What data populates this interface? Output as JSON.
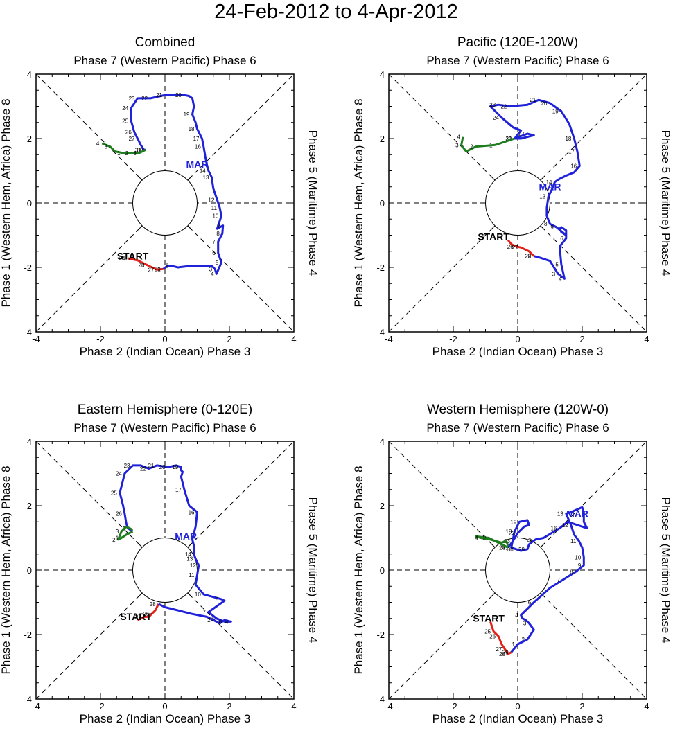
{
  "figure_title": "24-Feb-2012 to 4-Apr-2012",
  "axis_labels": {
    "top": "Phase 7 (Western Pacific) Phase 6",
    "bottom": "Phase 2 (Indian Ocean) Phase 3",
    "left": "Phase 1 (Western Hem, Africa) Phase 8",
    "right": "Phase 5 (Maritime) Phase 4"
  },
  "labels": {
    "start": "START",
    "month": "MAR"
  },
  "colors": {
    "feb": "#e32119",
    "mar": "#1f22d8",
    "apr": "#1e7d1e"
  },
  "chart_data": [
    {
      "type": "line",
      "title": "Combined",
      "xlim": [
        -4,
        4
      ],
      "ylim": [
        -4,
        4
      ],
      "xticks": [
        "-4",
        "-2",
        "0",
        "2",
        "4"
      ],
      "yticks": [
        "-4",
        "-2",
        "0",
        "2",
        "4"
      ],
      "start_label_at": [
        -1.0,
        -1.75
      ],
      "month_label_at": [
        1.0,
        1.1
      ],
      "series": [
        {
          "name": "Feb",
          "color": "feb",
          "x": [
            -1.15,
            -0.85,
            -0.55,
            -0.25,
            -0.05
          ],
          "y": [
            -1.72,
            -1.78,
            -1.93,
            -2.07,
            -2.05
          ],
          "labels": [
            "24",
            "",
            "28",
            "27",
            "29"
          ]
        },
        {
          "name": "Mar",
          "color": "mar",
          "x": [
            -0.05,
            0.08,
            0.2,
            0.4,
            0.8,
            1.2,
            1.45,
            1.55,
            1.6,
            1.75,
            1.65,
            1.65,
            1.78,
            1.8,
            1.62,
            1.75,
            1.7,
            1.62,
            1.5,
            1.45,
            1.35,
            1.3,
            1.25,
            1.2,
            1.15,
            1.0,
            0.95,
            0.85,
            0.9,
            0.85,
            0.75,
            0.6,
            0.0,
            -0.45,
            -0.85,
            -1.05,
            -1.05,
            -0.95,
            -0.85,
            -0.75,
            -0.65,
            -0.6
          ],
          "y": [
            -2.05,
            -1.95,
            -1.95,
            -2.0,
            -1.95,
            -1.95,
            -1.95,
            -2.05,
            -2.2,
            -1.85,
            -1.55,
            -1.2,
            -0.95,
            -0.7,
            -0.8,
            -0.4,
            -0.15,
            0.1,
            0.45,
            0.8,
            1.0,
            1.2,
            1.45,
            1.75,
            2.0,
            2.3,
            2.5,
            2.75,
            3.0,
            3.25,
            3.32,
            3.35,
            3.35,
            3.25,
            3.25,
            2.95,
            2.55,
            2.2,
            2.0,
            1.8,
            1.65,
            1.65
          ],
          "labels": [
            "1",
            "",
            "2",
            "",
            "",
            "",
            "",
            "3",
            "4",
            "5",
            "6",
            "7",
            "8",
            "9",
            "",
            "10",
            "11",
            "12",
            "",
            "13",
            "14",
            "MAR",
            "",
            "16",
            "17",
            "18",
            "",
            "19",
            "",
            "",
            "",
            "20",
            "21",
            "22",
            "23",
            "24",
            "25",
            "26",
            "27",
            "",
            "31",
            "30"
          ]
        },
        {
          "name": "Apr",
          "color": "apr",
          "x": [
            -0.6,
            -0.8,
            -1.05,
            -1.3,
            -1.55,
            -1.7,
            -1.95
          ],
          "y": [
            1.65,
            1.55,
            1.55,
            1.55,
            1.6,
            1.75,
            1.85
          ],
          "labels": [
            "",
            "3",
            "2",
            "1",
            "",
            "3",
            "4"
          ]
        }
      ]
    },
    {
      "type": "line",
      "title": "Pacific (120E-120W)",
      "xlim": [
        -4,
        4
      ],
      "ylim": [
        -4,
        4
      ],
      "xticks": [
        "-4",
        "-2",
        "0",
        "2",
        "4"
      ],
      "yticks": [
        "-4",
        "-2",
        "0",
        "2",
        "4"
      ],
      "start_label_at": [
        -0.75,
        -1.15
      ],
      "month_label_at": [
        1.0,
        0.4
      ],
      "series": [
        {
          "name": "Feb",
          "color": "feb",
          "x": [
            -0.3,
            -0.2,
            -0.05,
            0.1,
            0.35,
            0.5
          ],
          "y": [
            -1.15,
            -1.28,
            -1.35,
            -1.38,
            -1.5,
            -1.65
          ],
          "labels": [
            "",
            "",
            "26",
            "27",
            "",
            "28"
          ]
        },
        {
          "name": "Mar",
          "color": "mar",
          "x": [
            0.5,
            0.7,
            1.0,
            1.25,
            1.45,
            1.35,
            1.3,
            1.5,
            1.5,
            1.35,
            1.3,
            1.35,
            1.5,
            1.2,
            1.0,
            0.9,
            0.9,
            0.95,
            1.05,
            1.15,
            1.3,
            1.5,
            1.75,
            1.92,
            1.85,
            1.75,
            1.6,
            1.35,
            1.0,
            0.65,
            0.3,
            -0.25,
            -0.6,
            -0.85,
            -0.5,
            -0.15,
            0.1,
            -0.1,
            0.3,
            0.5,
            0.1,
            -0.1
          ],
          "y": [
            -1.65,
            -1.7,
            -1.8,
            -2.2,
            -2.35,
            -1.9,
            -1.35,
            -1.1,
            -0.85,
            -0.75,
            -0.8,
            -0.9,
            -1.0,
            -0.75,
            -0.65,
            -0.4,
            -0.15,
            0.2,
            0.4,
            0.65,
            0.75,
            0.85,
            0.95,
            1.15,
            1.6,
            2.0,
            2.45,
            2.85,
            3.1,
            3.2,
            3.05,
            3.0,
            3.05,
            3.0,
            2.65,
            2.35,
            2.25,
            2.0,
            2.15,
            2.1,
            2.0,
            2.0
          ],
          "labels": [
            "2",
            "",
            "",
            "3",
            "4",
            "5",
            "",
            "6",
            "",
            "",
            "",
            "",
            "",
            "9",
            "8",
            "",
            "",
            "13",
            "",
            "14",
            "",
            "MAR",
            "",
            "16",
            "17",
            "18",
            "",
            "19",
            "20",
            "21",
            "",
            "22",
            "23",
            "",
            "24",
            "",
            "",
            "31",
            "27",
            "",
            "",
            "30"
          ]
        },
        {
          "name": "Apr",
          "color": "apr",
          "x": [
            -0.1,
            -0.7,
            -1.3,
            -1.6,
            -1.75,
            -1.7
          ],
          "y": [
            2.0,
            1.8,
            1.75,
            1.6,
            1.8,
            2.05
          ],
          "labels": [
            "",
            "1",
            "2",
            "",
            "3",
            "4"
          ]
        }
      ]
    },
    {
      "type": "line",
      "title": "Eastern Hemisphere (0-120E)",
      "xlim": [
        -4,
        4
      ],
      "ylim": [
        -4,
        4
      ],
      "xticks": [
        "-4",
        "-2",
        "0",
        "2",
        "4"
      ],
      "yticks": [
        "-4",
        "-2",
        "0",
        "2",
        "4"
      ],
      "start_label_at": [
        -0.9,
        -1.55
      ],
      "month_label_at": [
        0.65,
        0.95
      ],
      "series": [
        {
          "name": "Feb",
          "color": "feb",
          "x": [
            -0.85,
            -0.65,
            -0.5,
            -0.4,
            -0.3,
            -0.2
          ],
          "y": [
            -1.55,
            -1.45,
            -1.45,
            -1.35,
            -1.25,
            -1.05
          ],
          "labels": [
            "",
            "27",
            "",
            "26",
            "",
            "28"
          ]
        },
        {
          "name": "Mar",
          "color": "mar",
          "x": [
            -0.2,
            0.0,
            0.4,
            0.8,
            1.3,
            1.5,
            1.7,
            1.85,
            2.05,
            1.85,
            1.6,
            1.35,
            1.85,
            1.75,
            1.2,
            0.95,
            1.0,
            1.05,
            0.95,
            0.9,
            0.9,
            0.85,
            0.95,
            1.0,
            0.75,
            0.6,
            0.5,
            0.55,
            0.5,
            0.5,
            0.35,
            0.1,
            -0.25,
            -0.5,
            -0.75,
            -1.0,
            -1.25,
            -1.4,
            -1.3,
            -1.25,
            -1.2,
            -1.15,
            -1.0
          ],
          "y": [
            -1.05,
            -1.15,
            -1.25,
            -1.35,
            -1.45,
            -1.55,
            -1.65,
            -1.55,
            -1.6,
            -1.6,
            -1.5,
            -1.3,
            -0.95,
            -0.9,
            -0.75,
            -0.45,
            -0.15,
            0.15,
            0.35,
            0.5,
            0.75,
            0.95,
            1.35,
            1.8,
            2.0,
            2.5,
            2.9,
            3.05,
            3.1,
            3.2,
            3.25,
            3.2,
            3.25,
            3.15,
            3.25,
            3.25,
            3.0,
            2.4,
            2.0,
            1.75,
            1.45,
            1.3,
            1.2
          ],
          "labels": [
            "",
            "",
            "",
            "",
            "",
            "2",
            "",
            "",
            "4",
            "6",
            "5",
            "7",
            "",
            "8",
            "10",
            "",
            "11",
            "12",
            "13",
            "14",
            "",
            "MAR",
            "",
            "16",
            "",
            "17",
            "",
            "",
            "",
            "19",
            "",
            "20",
            "21",
            "22",
            "",
            "23",
            "24",
            "25",
            "",
            "26",
            "",
            "4",
            ""
          ]
        },
        {
          "name": "Apr",
          "color": "apr",
          "x": [
            -1.0,
            -1.2,
            -1.35,
            -1.45,
            -1.35,
            -1.2,
            -1.0
          ],
          "y": [
            1.2,
            1.1,
            1.0,
            0.95,
            1.2,
            1.35,
            1.25
          ],
          "labels": [
            "",
            "",
            "1",
            "2",
            "3",
            "",
            ""
          ]
        }
      ]
    },
    {
      "type": "line",
      "title": "Western Hemisphere (120W-0)",
      "xlim": [
        -4,
        4
      ],
      "ylim": [
        -4,
        4
      ],
      "xticks": [
        "-4",
        "-2",
        "0",
        "2",
        "4"
      ],
      "yticks": [
        "-4",
        "-2",
        "0",
        "2",
        "4"
      ],
      "start_label_at": [
        -0.9,
        -1.6
      ],
      "month_label_at": [
        1.85,
        1.65
      ],
      "series": [
        {
          "name": "Feb",
          "color": "feb",
          "x": [
            -0.85,
            -0.8,
            -0.75,
            -0.6,
            -0.5,
            -0.4,
            -0.3,
            -0.2
          ],
          "y": [
            -1.6,
            -1.75,
            -1.9,
            -2.05,
            -2.3,
            -2.45,
            -2.6,
            -2.55
          ],
          "labels": [
            "",
            "",
            "25",
            "26",
            "",
            "27",
            "28",
            "29"
          ]
        },
        {
          "name": "Mar",
          "color": "mar",
          "x": [
            -0.2,
            0.0,
            0.3,
            0.5,
            0.35,
            0.25,
            0.15,
            0.1,
            0.5,
            1.0,
            1.4,
            1.8,
            2.05,
            2.05,
            2.0,
            1.9,
            1.75,
            1.65,
            1.5,
            1.65,
            2.0,
            2.05,
            2.05,
            2.15,
            1.85,
            1.55,
            1.3,
            1.05,
            0.8,
            0.55,
            0.35,
            0.3,
            0.1,
            -0.05,
            -0.2,
            -0.1,
            0.05,
            0.3,
            0.35,
            0.2,
            0.0,
            -0.15,
            -0.3
          ],
          "y": [
            -2.55,
            -2.3,
            -2.15,
            -1.85,
            -1.65,
            -1.55,
            -1.5,
            -1.4,
            -1.0,
            -0.55,
            -0.3,
            -0.05,
            0.15,
            0.4,
            0.7,
            0.9,
            1.1,
            1.4,
            1.75,
            1.8,
            1.95,
            1.8,
            1.5,
            1.3,
            1.4,
            1.5,
            1.3,
            1.15,
            1.0,
            0.95,
            0.8,
            0.65,
            0.6,
            0.65,
            0.7,
            1.2,
            1.5,
            1.55,
            1.4,
            1.35,
            1.15,
            0.9,
            0.7
          ],
          "labels": [
            "",
            "1",
            "2",
            "",
            "3",
            "",
            "",
            "4",
            "6",
            "",
            "7",
            "8",
            "9",
            "10",
            "",
            "11",
            "",
            "12",
            "13",
            "",
            "",
            "",
            "",
            "",
            "MAR",
            "",
            "16",
            "",
            "",
            "28",
            "",
            "29",
            "",
            "30",
            "31",
            "18",
            "19",
            "",
            "",
            "",
            "22",
            "23",
            "24"
          ]
        },
        {
          "name": "Apr",
          "color": "apr",
          "x": [
            -0.3,
            -0.6,
            -0.9,
            -1.3,
            -1.15,
            -0.85,
            -0.5,
            -0.35,
            -0.3
          ],
          "y": [
            0.7,
            0.85,
            1.0,
            1.05,
            1.0,
            0.95,
            0.85,
            0.9,
            0.75
          ],
          "labels": [
            "",
            "",
            "2",
            "",
            "4",
            "",
            "",
            "",
            ""
          ]
        }
      ]
    }
  ]
}
